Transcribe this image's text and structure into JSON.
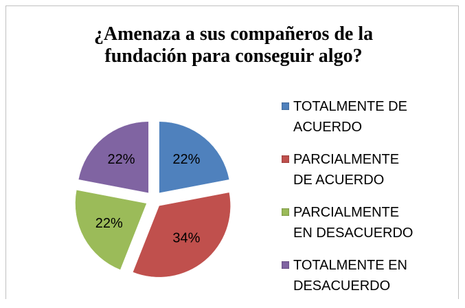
{
  "chart_data": {
    "type": "pie",
    "title": "¿Amenaza a sus compañeros de la fundación para conseguir algo?",
    "categories": [
      "TOTALMENTE DE ACUERDO",
      "PARCIALMENTE DE ACUERDO",
      "PARCIALMENTE EN DESACUERDO",
      "TOTALMENTE EN DESACUERDO"
    ],
    "values": [
      22,
      34,
      22,
      22
    ],
    "value_labels": [
      "22%",
      "34%",
      "22%",
      "22%"
    ],
    "colors": [
      "#4f81bd",
      "#c0504d",
      "#9bbb59",
      "#8064a2"
    ],
    "legend": "right"
  }
}
